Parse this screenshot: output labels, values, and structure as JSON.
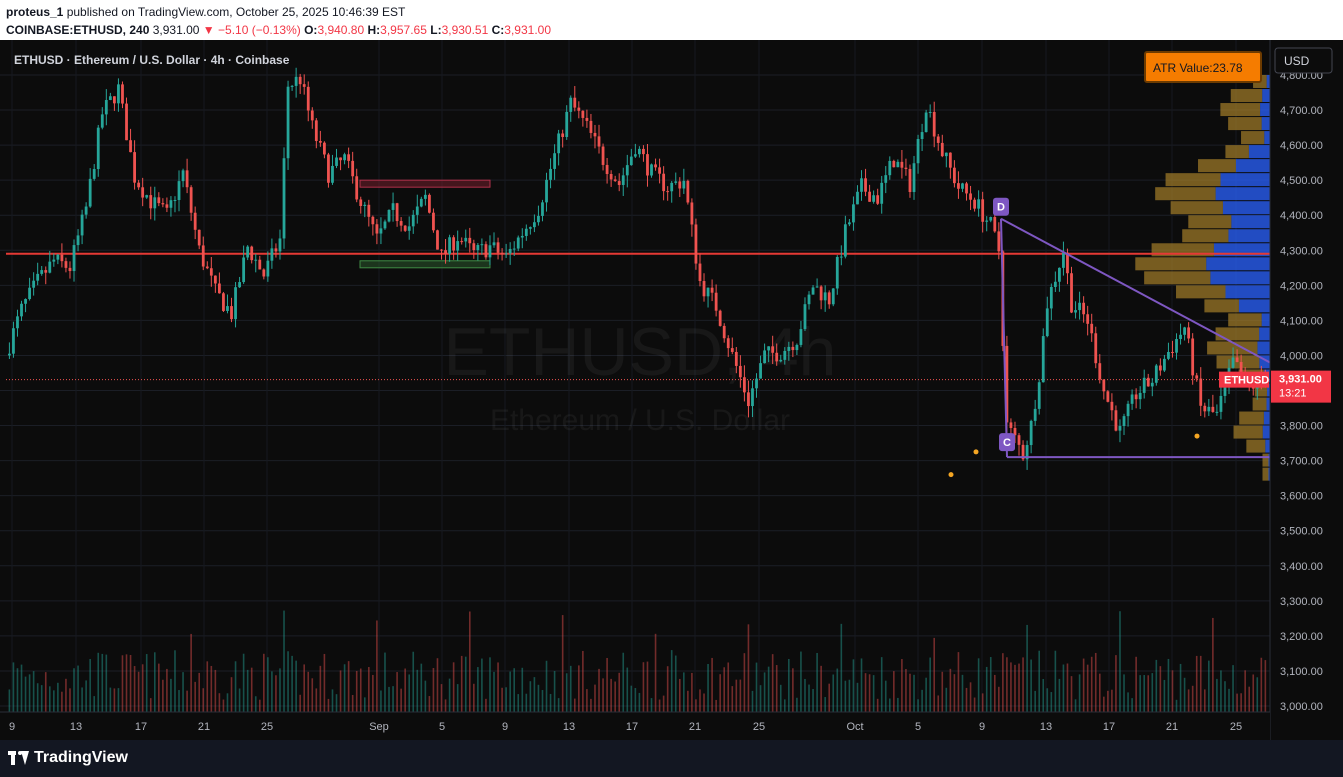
{
  "header": {
    "author": "proteus_1",
    "published": "published on TradingView.com, October 25, 2025 10:46:39 EST",
    "symbol": "COINBASE:ETHUSD, 240",
    "price": "3,931.00",
    "change": "−5.10 (−0.13%)",
    "o_label": "O:",
    "o": "3,940.80",
    "h_label": "H:",
    "h": "3,957.65",
    "l_label": "L:",
    "l": "3,930.51",
    "c_label": "C:",
    "c": "3,931.00"
  },
  "legend": "ETHUSD · Ethereum / U.S. Dollar · 4h · Coinbase",
  "watermark": {
    "symbol": "ETHUSD, 4h",
    "name": "Ethereum / U.S. Dollar"
  },
  "currency_button": "USD",
  "atr_box": "ATR Value:23.78",
  "last_price": {
    "ticker": "ETHUSD",
    "value": "3,931.00",
    "countdown": "13:21"
  },
  "pattern_labels": {
    "d": "D",
    "c": "C"
  },
  "footer": {
    "brand": "TradingView"
  },
  "colors": {
    "up": "#26a69a",
    "down": "#ef5350",
    "hline": "#e53935",
    "pattern": "#7e57c2",
    "atr_bg": "#f57c00",
    "vp_up": "#2962ff",
    "vp_down": "#a57f2a"
  },
  "chart_data": {
    "type": "candlestick",
    "y_ticks": [
      "4,800.00",
      "4,700.00",
      "4,600.00",
      "4,500.00",
      "4,400.00",
      "4,300.00",
      "4,200.00",
      "4,100.00",
      "4,000.00",
      "3,900.00",
      "3,800.00",
      "3,700.00",
      "3,600.00",
      "3,500.00",
      "3,400.00",
      "3,300.00",
      "3,200.00",
      "3,100.00",
      "3,000.00"
    ],
    "y_range": [
      2990,
      4835
    ],
    "x_ticks": [
      "9",
      "13",
      "17",
      "21",
      "25",
      "Sep",
      "5",
      "9",
      "13",
      "17",
      "21",
      "25",
      "Oct",
      "5",
      "9",
      "13",
      "17",
      "21",
      "25"
    ],
    "price_path": [
      [
        0,
        4000
      ],
      [
        4,
        4130
      ],
      [
        8,
        4210
      ],
      [
        12,
        4270
      ],
      [
        16,
        4250
      ],
      [
        20,
        4420
      ],
      [
        24,
        4690
      ],
      [
        28,
        4760
      ],
      [
        32,
        4510
      ],
      [
        36,
        4440
      ],
      [
        40,
        4400
      ],
      [
        44,
        4520
      ],
      [
        48,
        4300
      ],
      [
        52,
        4180
      ],
      [
        56,
        4120
      ],
      [
        60,
        4310
      ],
      [
        64,
        4230
      ],
      [
        68,
        4330
      ],
      [
        70,
        4770
      ],
      [
        73,
        4790
      ],
      [
        76,
        4650
      ],
      [
        80,
        4520
      ],
      [
        84,
        4560
      ],
      [
        88,
        4440
      ],
      [
        92,
        4330
      ],
      [
        96,
        4410
      ],
      [
        100,
        4370
      ],
      [
        104,
        4450
      ],
      [
        108,
        4280
      ],
      [
        112,
        4340
      ],
      [
        116,
        4290
      ],
      [
        120,
        4310
      ],
      [
        124,
        4280
      ],
      [
        128,
        4350
      ],
      [
        132,
        4420
      ],
      [
        136,
        4570
      ],
      [
        140,
        4720
      ],
      [
        144,
        4650
      ],
      [
        148,
        4560
      ],
      [
        152,
        4490
      ],
      [
        156,
        4600
      ],
      [
        160,
        4520
      ],
      [
        164,
        4480
      ],
      [
        168,
        4500
      ],
      [
        172,
        4210
      ],
      [
        176,
        4140
      ],
      [
        180,
        4000
      ],
      [
        184,
        3870
      ],
      [
        188,
        4000
      ],
      [
        192,
        4010
      ],
      [
        196,
        4050
      ],
      [
        200,
        4200
      ],
      [
        204,
        4160
      ],
      [
        208,
        4350
      ],
      [
        212,
        4480
      ],
      [
        216,
        4450
      ],
      [
        220,
        4560
      ],
      [
        224,
        4490
      ],
      [
        228,
        4720
      ],
      [
        232,
        4580
      ],
      [
        236,
        4480
      ],
      [
        240,
        4440
      ],
      [
        244,
        4370
      ],
      [
        246,
        4300
      ],
      [
        248,
        3800
      ],
      [
        250,
        3760
      ],
      [
        252,
        3720
      ],
      [
        254,
        3800
      ],
      [
        256,
        3950
      ],
      [
        258,
        4150
      ],
      [
        262,
        4300
      ],
      [
        264,
        4150
      ],
      [
        268,
        4100
      ],
      [
        272,
        3900
      ],
      [
        276,
        3780
      ],
      [
        280,
        3890
      ],
      [
        284,
        3930
      ],
      [
        288,
        4010
      ],
      [
        292,
        4080
      ],
      [
        296,
        3850
      ],
      [
        300,
        3830
      ],
      [
        304,
        3980
      ],
      [
        308,
        3910
      ],
      [
        312,
        3931
      ]
    ],
    "horizontal_line": 4290,
    "resistance_zone": [
      4480,
      4500
    ],
    "support_zone": [
      4250,
      4270
    ],
    "triangle": {
      "d_point": 4390,
      "c_point": 3710,
      "upper_end": 3980,
      "base": 3710
    },
    "last_price": 3931
  }
}
